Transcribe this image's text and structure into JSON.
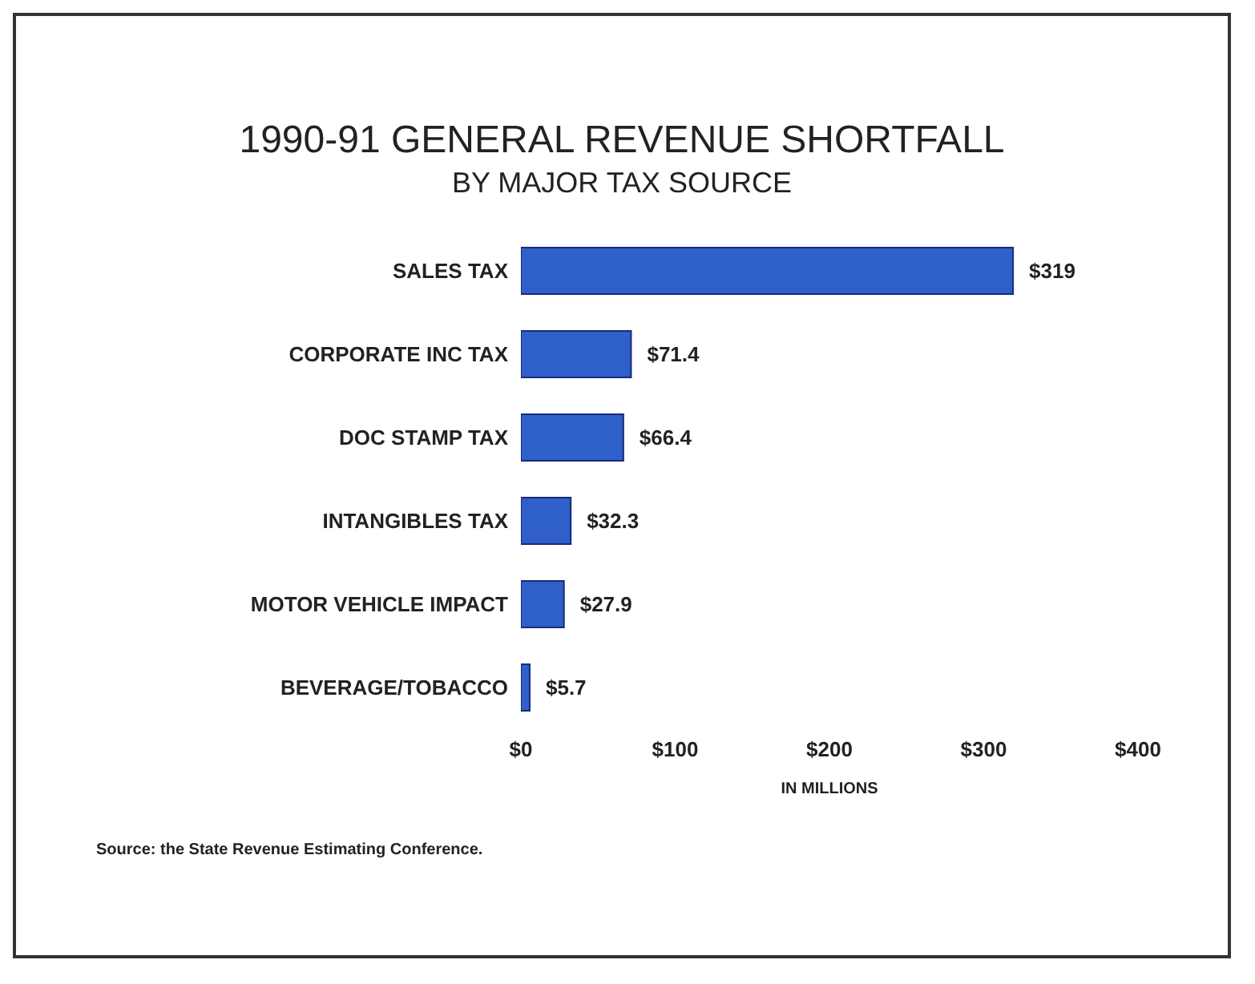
{
  "chart_data": {
    "type": "bar",
    "orientation": "horizontal",
    "title": "1990-91 GENERAL REVENUE SHORTFALL",
    "subtitle": "BY MAJOR TAX SOURCE",
    "categories": [
      "SALES TAX",
      "CORPORATE INC TAX",
      "DOC STAMP TAX",
      "INTANGIBLES TAX",
      "MOTOR VEHICLE IMPACT",
      "BEVERAGE/TOBACCO"
    ],
    "values": [
      319,
      71.4,
      66.4,
      32.3,
      27.9,
      5.7
    ],
    "value_labels": [
      "$319",
      "$71.4",
      "$66.4",
      "$32.3",
      "$27.9",
      "$5.7"
    ],
    "color": "#2f5fc9",
    "xlim": [
      0,
      400
    ],
    "xticks": [
      {
        "value": 0,
        "label": "$0"
      },
      {
        "value": 100,
        "label": "$100"
      },
      {
        "value": 200,
        "label": "$200"
      },
      {
        "value": 300,
        "label": "$300"
      },
      {
        "value": 400,
        "label": "$400"
      }
    ],
    "xlabel": "IN MILLIONS",
    "annotations": [
      "Source: the State Revenue Estimating Conference."
    ]
  }
}
